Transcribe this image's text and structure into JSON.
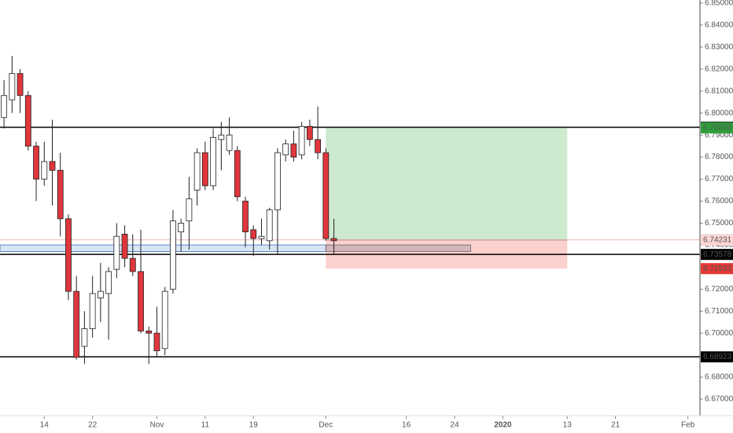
{
  "chart_data": {
    "type": "candlestick",
    "x": [
      -40,
      -39,
      -38,
      -37,
      -36,
      -35,
      -34,
      -33,
      -32,
      -31,
      -30,
      -29,
      -28,
      -27,
      -26,
      -25,
      -24,
      -23,
      -22,
      -21,
      -20,
      -19,
      -18,
      -17,
      -16,
      -15,
      -14,
      -13,
      -12,
      -11,
      -10,
      -9,
      -8,
      -7,
      -6,
      -5,
      -4,
      -3,
      -2,
      -1,
      0,
      1
    ],
    "open": [
      6.798,
      6.806,
      6.818,
      6.808,
      6.785,
      6.77,
      6.778,
      6.774,
      6.752,
      6.719,
      6.694,
      6.702,
      6.716,
      6.718,
      6.729,
      6.745,
      6.734,
      6.728,
      6.701,
      6.7,
      6.693,
      6.72,
      6.746,
      6.751,
      6.765,
      6.782,
      6.767,
      6.788,
      6.783,
      6.783,
      6.76,
      6.747,
      6.743,
      6.742,
      6.756,
      6.781,
      6.786,
      6.781,
      6.794,
      6.788,
      6.782,
      6.743
    ],
    "high": [
      6.815,
      6.826,
      6.82,
      6.81,
      6.787,
      6.787,
      6.797,
      6.782,
      6.754,
      6.726,
      6.71,
      6.726,
      6.732,
      6.73,
      6.75,
      6.749,
      6.745,
      6.747,
      6.703,
      6.712,
      6.721,
      6.756,
      6.752,
      6.771,
      6.784,
      6.787,
      6.793,
      6.796,
      6.798,
      6.785,
      6.762,
      6.749,
      6.752,
      6.757,
      6.784,
      6.788,
      6.792,
      6.796,
      6.797,
      6.803,
      6.784,
      6.752
    ],
    "low": [
      6.793,
      6.8,
      6.8,
      6.783,
      6.76,
      6.767,
      6.758,
      6.744,
      6.715,
      6.688,
      6.686,
      6.698,
      6.705,
      6.697,
      6.725,
      6.73,
      6.726,
      6.7,
      6.686,
      6.689,
      6.69,
      6.718,
      6.737,
      6.738,
      6.758,
      6.765,
      6.765,
      6.774,
      6.781,
      6.76,
      6.739,
      6.735,
      6.74,
      6.738,
      6.736,
      6.778,
      6.778,
      6.779,
      6.785,
      6.779,
      6.742,
      6.736
    ],
    "close": [
      6.808,
      6.818,
      6.808,
      6.785,
      6.77,
      6.778,
      6.774,
      6.752,
      6.719,
      6.689,
      6.702,
      6.718,
      6.719,
      6.728,
      6.744,
      6.734,
      6.728,
      6.701,
      6.7,
      6.692,
      6.719,
      6.751,
      6.75,
      6.761,
      6.782,
      6.767,
      6.789,
      6.79,
      6.79,
      6.762,
      6.746,
      6.743,
      6.744,
      6.756,
      6.782,
      6.786,
      6.78,
      6.794,
      6.788,
      6.782,
      6.743,
      6.742
    ],
    "up_color": "#ffffff",
    "down_color": "#e0363c",
    "xlim": [
      -40.5,
      46.5
    ],
    "xticks": [
      {
        "value": -35,
        "label": "14"
      },
      {
        "value": -29,
        "label": "22"
      },
      {
        "value": -21,
        "label": "Nov"
      },
      {
        "value": -15,
        "label": "11"
      },
      {
        "value": -9,
        "label": "19"
      },
      {
        "value": 0,
        "label": "Dec"
      },
      {
        "value": 10,
        "label": "16"
      },
      {
        "value": 16,
        "label": "24"
      },
      {
        "value": 22,
        "label": "2020"
      },
      {
        "value": 30,
        "label": "13"
      },
      {
        "value": 36,
        "label": "21"
      },
      {
        "value": 45,
        "label": "Feb"
      }
    ],
    "ylim": [
      6.6625,
      6.8514
    ],
    "yticks": [
      {
        "value": 6.67,
        "label": "6.67000"
      },
      {
        "value": 6.68,
        "label": "6.68000"
      },
      {
        "value": 6.69,
        "label": "6.69000"
      },
      {
        "value": 6.7,
        "label": "6.70000"
      },
      {
        "value": 6.71,
        "label": "6.71000"
      },
      {
        "value": 6.72,
        "label": "6.72000"
      },
      {
        "value": 6.73,
        "label": "6.73000"
      },
      {
        "value": 6.74,
        "label": "6.74000"
      },
      {
        "value": 6.75,
        "label": "6.75000"
      },
      {
        "value": 6.76,
        "label": "6.76000"
      },
      {
        "value": 6.77,
        "label": "6.77000"
      },
      {
        "value": 6.78,
        "label": "6.78000"
      },
      {
        "value": 6.79,
        "label": "6.79000"
      },
      {
        "value": 6.8,
        "label": "6.80000"
      },
      {
        "value": 6.81,
        "label": "6.81000"
      },
      {
        "value": 6.82,
        "label": "6.82000"
      },
      {
        "value": 6.83,
        "label": "6.83000"
      },
      {
        "value": 6.84,
        "label": "6.84000"
      },
      {
        "value": 6.85,
        "label": "6.85000"
      }
    ],
    "levels": [
      6.79357,
      6.73578,
      6.68923
    ],
    "last_price": 6.74234,
    "zone": {
      "low": 6.7371,
      "high": 6.7401,
      "end": 18
    },
    "position": {
      "start": 0,
      "end": 30,
      "entry": 6.74231,
      "target": 6.79328,
      "stop": 6.72933
    }
  }
}
